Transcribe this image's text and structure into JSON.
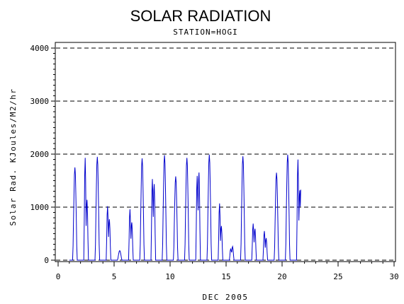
{
  "chart_data": {
    "type": "line",
    "title": "SOLAR RADIATION",
    "subtitle": "STATION=HOGI",
    "xlabel": "DEC 2005",
    "ylabel": "Solar Rad. KJoules/M2/hr",
    "xlim": [
      0,
      30
    ],
    "ylim": [
      0,
      4000
    ],
    "xticks": [
      0,
      5,
      10,
      15,
      20,
      25,
      30
    ],
    "yticks": [
      0,
      1000,
      2000,
      3000,
      4000
    ],
    "grid": "horizontal dashed",
    "line_color": "#0000cc",
    "daily_peaks": [
      {
        "day": 1,
        "peaks": [
          1750
        ]
      },
      {
        "day": 2,
        "peaks": [
          1930,
          1150
        ]
      },
      {
        "day": 3,
        "peaks": [
          1950
        ]
      },
      {
        "day": 4,
        "peaks": [
          1020,
          780
        ]
      },
      {
        "day": 5,
        "peaks": [
          180
        ]
      },
      {
        "day": 6,
        "peaks": [
          960,
          720
        ]
      },
      {
        "day": 7,
        "peaks": [
          1920
        ]
      },
      {
        "day": 8,
        "peaks": [
          1530,
          1450
        ]
      },
      {
        "day": 9,
        "peaks": [
          1980
        ]
      },
      {
        "day": 10,
        "peaks": [
          1580
        ]
      },
      {
        "day": 11,
        "peaks": [
          1930
        ]
      },
      {
        "day": 12,
        "peaks": [
          1590,
          1670
        ]
      },
      {
        "day": 13,
        "peaks": [
          1990
        ]
      },
      {
        "day": 14,
        "peaks": [
          1070,
          650
        ]
      },
      {
        "day": 15,
        "peaks": [
          220,
          260
        ]
      },
      {
        "day": 16,
        "peaks": [
          1960
        ]
      },
      {
        "day": 17,
        "peaks": [
          690,
          600
        ]
      },
      {
        "day": 18,
        "peaks": [
          550,
          420
        ]
      },
      {
        "day": 19,
        "peaks": [
          1650
        ]
      },
      {
        "day": 20,
        "peaks": [
          1990
        ]
      },
      {
        "day": 21,
        "peaks": [
          1900,
          1330
        ]
      }
    ]
  }
}
